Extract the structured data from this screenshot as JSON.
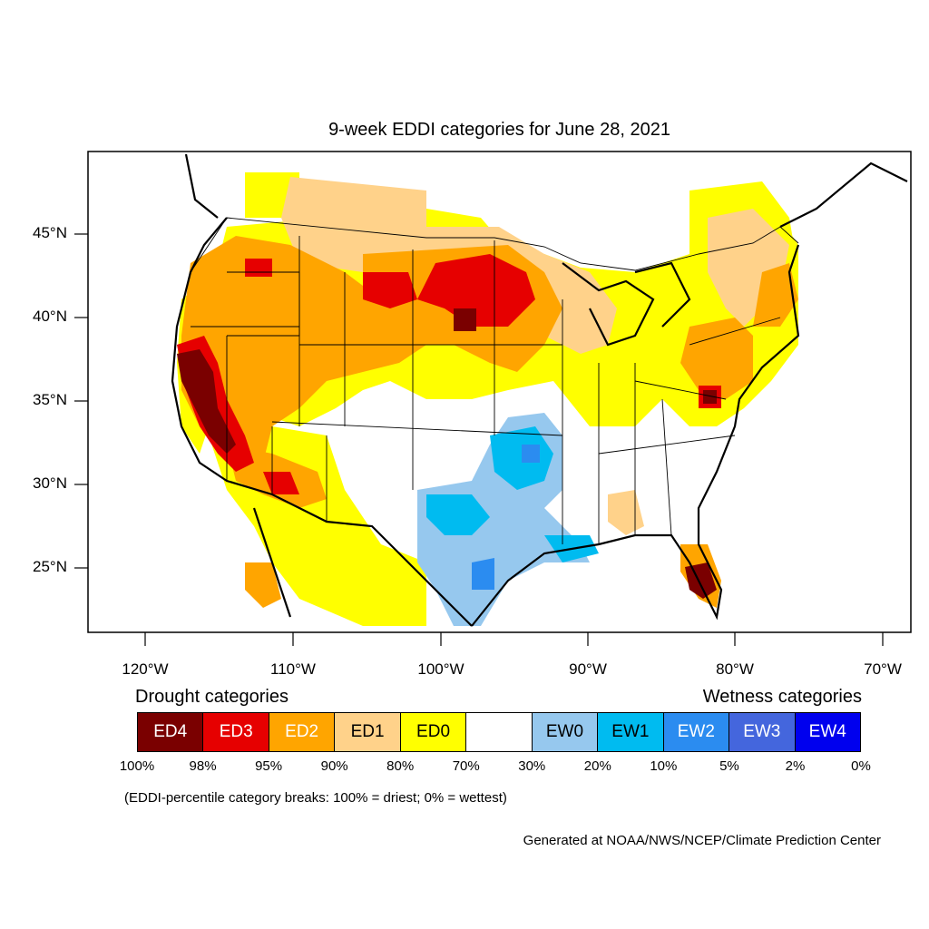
{
  "title": "9-week EDDI categories for June 28, 2021",
  "latitude_labels": [
    "45°N",
    "40°N",
    "35°N",
    "30°N",
    "25°N"
  ],
  "longitude_labels": [
    "120°W",
    "110°W",
    "100°W",
    "90°W",
    "80°W",
    "70°W"
  ],
  "legend": {
    "drought_heading": "Drought categories",
    "wetness_heading": "Wetness categories",
    "categories": [
      {
        "label": "ED4",
        "color": "#7a0000",
        "text_color": "#ffffff"
      },
      {
        "label": "ED3",
        "color": "#e60000",
        "text_color": "#ffffff"
      },
      {
        "label": "ED2",
        "color": "#ffa500",
        "text_color": "#ffffff"
      },
      {
        "label": "ED1",
        "color": "#ffd28a",
        "text_color": "#000000"
      },
      {
        "label": "ED0",
        "color": "#ffff00",
        "text_color": "#000000"
      },
      {
        "label": "",
        "color": "#ffffff",
        "text_color": "#000000"
      },
      {
        "label": "EW0",
        "color": "#96c8ee",
        "text_color": "#000000"
      },
      {
        "label": "EW1",
        "color": "#00bbf0",
        "text_color": "#000000"
      },
      {
        "label": "EW2",
        "color": "#2b8cf0",
        "text_color": "#ffffff"
      },
      {
        "label": "EW3",
        "color": "#4466dd",
        "text_color": "#ffffff"
      },
      {
        "label": "EW4",
        "color": "#0000ee",
        "text_color": "#ffffff"
      }
    ],
    "breaks": [
      "100%",
      "98%",
      "95%",
      "90%",
      "80%",
      "70%",
      "30%",
      "20%",
      "10%",
      "5%",
      "2%",
      "0%"
    ]
  },
  "note": "(EDDI-percentile category breaks: 100% = driest; 0% = wettest)",
  "credit": "Generated at NOAA/NWS/NCEP/Climate Prediction Center"
}
